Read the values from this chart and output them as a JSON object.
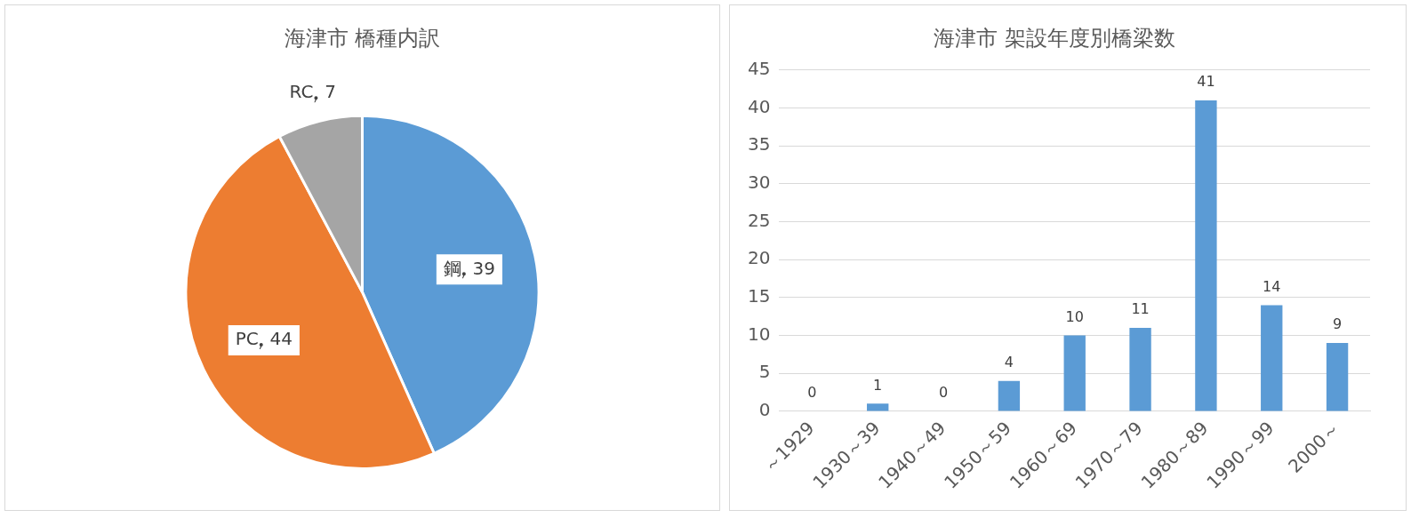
{
  "chart_data": [
    {
      "type": "pie",
      "title": "海津市 橋種内訳",
      "categories": [
        "鋼",
        "PC",
        "RC"
      ],
      "values": [
        39,
        44,
        7
      ],
      "colors": [
        "#5b9bd5",
        "#ed7d31",
        "#a5a5a5"
      ],
      "data_labels": true,
      "legend": false
    },
    {
      "type": "bar",
      "title": "海津市 架設年度別橋梁数",
      "categories": [
        "～1929",
        "1930～39",
        "1940～49",
        "1950～59",
        "1960～69",
        "1970～79",
        "1980～89",
        "1990～99",
        "2000～"
      ],
      "values": [
        0,
        1,
        0,
        4,
        10,
        11,
        41,
        14,
        9
      ],
      "color": "#5b9bd5",
      "ylim": [
        0,
        45
      ],
      "yticks": [
        0,
        5,
        10,
        15,
        20,
        25,
        30,
        35,
        40,
        45
      ],
      "grid": "y",
      "data_labels": true,
      "legend": false
    }
  ]
}
